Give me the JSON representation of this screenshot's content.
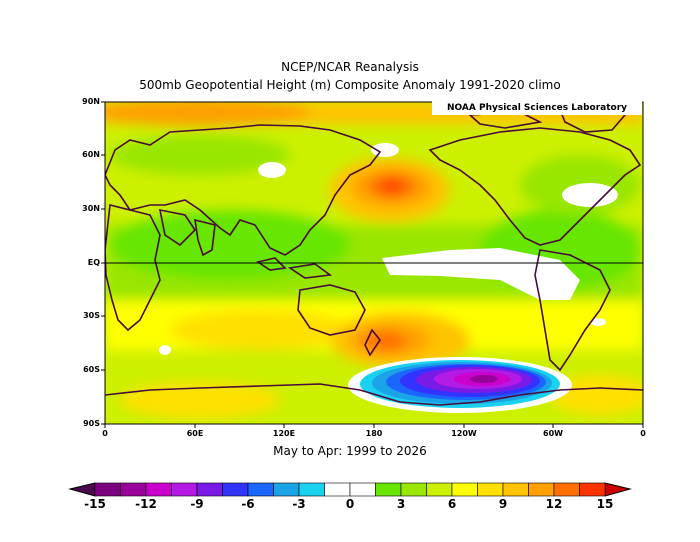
{
  "header": {
    "title_line1": "NCEP/NCAR Reanalysis",
    "title_line2": "500mb Geopotential Height (m) Composite Anomaly 1991-2020 climo"
  },
  "credit": "NOAA Physical Sciences Laboratory",
  "subtitle": "May to Apr: 1999 to 2026",
  "map": {
    "lat_labels": [
      "90N",
      "60N",
      "30N",
      "EQ",
      "30S",
      "60S",
      "90S"
    ],
    "lon_labels": [
      "0",
      "60E",
      "120E",
      "180",
      "120W",
      "60W",
      "0"
    ]
  },
  "colorbar": {
    "tick_labels": [
      "-15",
      "-12",
      "-9",
      "-6",
      "-3",
      "0",
      "3",
      "6",
      "9",
      "12",
      "15"
    ],
    "colors": [
      "#7a0080",
      "#990099",
      "#cc00cc",
      "#b31ae6",
      "#7a1ae6",
      "#3333ff",
      "#1a66ff",
      "#1aa3e6",
      "#1ad1f0",
      "#ffffff",
      "#ffffff",
      "#66e600",
      "#99e600",
      "#ccf000",
      "#ffff00",
      "#ffe000",
      "#ffc300",
      "#ffa000",
      "#ff7000",
      "#ff3300"
    ]
  }
}
